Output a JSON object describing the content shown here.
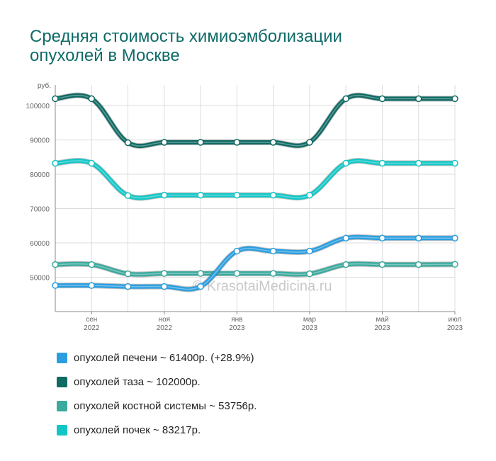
{
  "title_line1": "Средняя стоимость химиоэмболизации",
  "title_line2": "опухолей в Москве",
  "watermark": "© KrasotaiMedicina.ru",
  "chart_data": {
    "type": "line",
    "ylabel": "руб.",
    "ylim": [
      40000,
      106000
    ],
    "yticks": [
      50000,
      60000,
      70000,
      80000,
      90000,
      100000
    ],
    "x": [
      "2022-08",
      "2022-09",
      "2022-10",
      "2022-11",
      "2022-12",
      "2023-01",
      "2023-02",
      "2023-03",
      "2023-04",
      "2023-05",
      "2023-06",
      "2023-07"
    ],
    "xtick_labels": [
      {
        "month": "сен",
        "year": "2022",
        "index": 1
      },
      {
        "month": "ноя",
        "year": "2022",
        "index": 3
      },
      {
        "month": "янв",
        "year": "2023",
        "index": 5
      },
      {
        "month": "мар",
        "year": "2023",
        "index": 7
      },
      {
        "month": "май",
        "year": "2023",
        "index": 9
      },
      {
        "month": "июл",
        "year": "2023",
        "index": 11
      }
    ],
    "series": [
      {
        "name": "опухолей костной системы",
        "color": "#3aaa9e",
        "values": [
          53700,
          53700,
          51000,
          51100,
          51100,
          51100,
          51100,
          51000,
          53700,
          53700,
          53700,
          53756
        ]
      },
      {
        "name": "опухолей печени",
        "color": "#2b9ee0",
        "values": [
          47600,
          47600,
          47300,
          47300,
          47300,
          57600,
          57600,
          57600,
          61400,
          61400,
          61400,
          61400
        ]
      },
      {
        "name": "опухолей почек",
        "color": "#12c6c6",
        "values": [
          83200,
          83200,
          73800,
          73900,
          73900,
          73900,
          73900,
          73900,
          83200,
          83200,
          83200,
          83217
        ]
      },
      {
        "name": "опухолей таза",
        "color": "#0e6a63",
        "values": [
          102000,
          102000,
          89200,
          89300,
          89300,
          89300,
          89300,
          89300,
          102000,
          102000,
          102000,
          102000
        ]
      }
    ]
  },
  "legend": [
    {
      "label": "опухолей печени ~ 61400р. (+28.9%)",
      "color": "#2b9ee0"
    },
    {
      "label": "опухолей таза ~ 102000р.",
      "color": "#0e6a63"
    },
    {
      "label": "опухолей костной системы ~ 53756р.",
      "color": "#3aaa9e"
    },
    {
      "label": "опухолей почек ~ 83217р.",
      "color": "#12c6c6"
    }
  ]
}
